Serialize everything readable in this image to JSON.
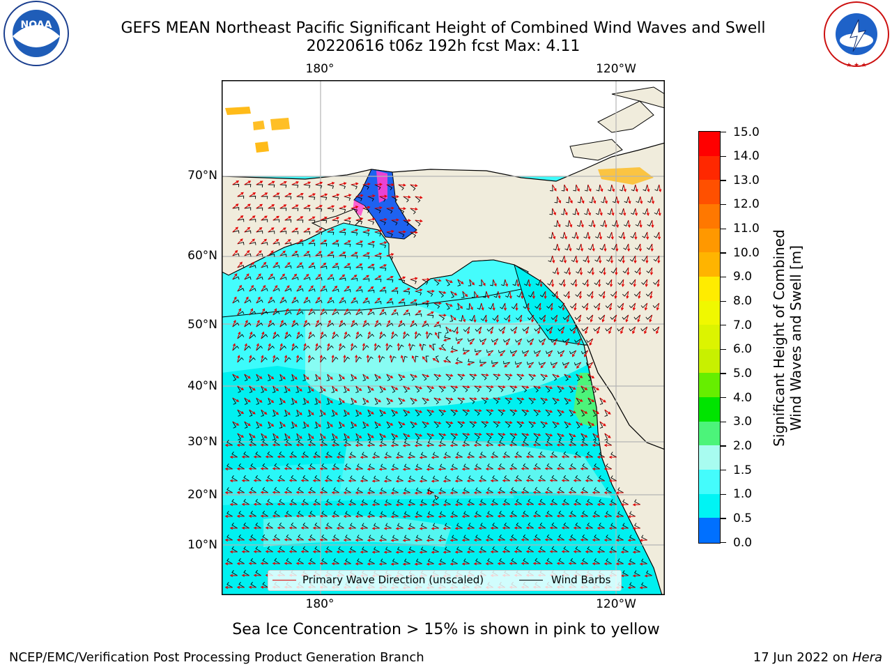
{
  "title": {
    "line1": "GEFS MEAN Northeast Pacific Significant Height of Combined Wind Waves and Swell",
    "line2": "20220616 t06z 192h fcst   Max: 4.11"
  },
  "logos": {
    "noaa": {
      "text": "NOAA",
      "ring": "NATIONAL OCEANIC AND ATMOSPHERIC ADMINISTRATION · U.S. DEPARTMENT OF COMMERCE"
    },
    "nws": {
      "ring": "NATIONAL WEATHER SERVICE"
    }
  },
  "map": {
    "lon_top": [
      "180°",
      "120°W"
    ],
    "lon_bottom": [
      "180°",
      "120°W"
    ],
    "lat_labels": [
      "70°N",
      "60°N",
      "50°N",
      "40°N",
      "30°N",
      "20°N",
      "10°N"
    ],
    "land_color": "#f0ecdc",
    "ocean_base_color": "#00f0f0",
    "wave_arrow_color": "#e00000",
    "wind_barb_color": "#000000"
  },
  "legend": {
    "wave": "Primary Wave Direction (unscaled)",
    "wind": "Wind Barbs"
  },
  "colorbar": {
    "title_line1": "Significant Height of Combined",
    "title_line2": "Wind Waves and Swell [m]",
    "ticks": [
      "15.0",
      "14.0",
      "13.0",
      "12.0",
      "11.0",
      "10.0",
      "9.0",
      "8.0",
      "7.0",
      "6.0",
      "5.0",
      "4.0",
      "3.0",
      "2.0",
      "1.5",
      "1.0",
      "0.5",
      "0.0"
    ],
    "colors_top_to_bottom": [
      "#ff0000",
      "#ff2800",
      "#ff5000",
      "#ff7800",
      "#ff9800",
      "#ffb400",
      "#ffec00",
      "#f0f800",
      "#dcf400",
      "#c8f000",
      "#66ee00",
      "#00e400",
      "#4cf47a",
      "#a8fcf0",
      "#44fcfc",
      "#00f4f4",
      "#0070ff",
      "#0000ff"
    ]
  },
  "ice_note": "Sea Ice Concentration > 15% is shown in pink to yellow",
  "footer": {
    "left": "NCEP/EMC/Verification Post Processing Product Generation Branch",
    "right_date": "17 Jun 2022 on",
    "right_host": "Hera"
  }
}
